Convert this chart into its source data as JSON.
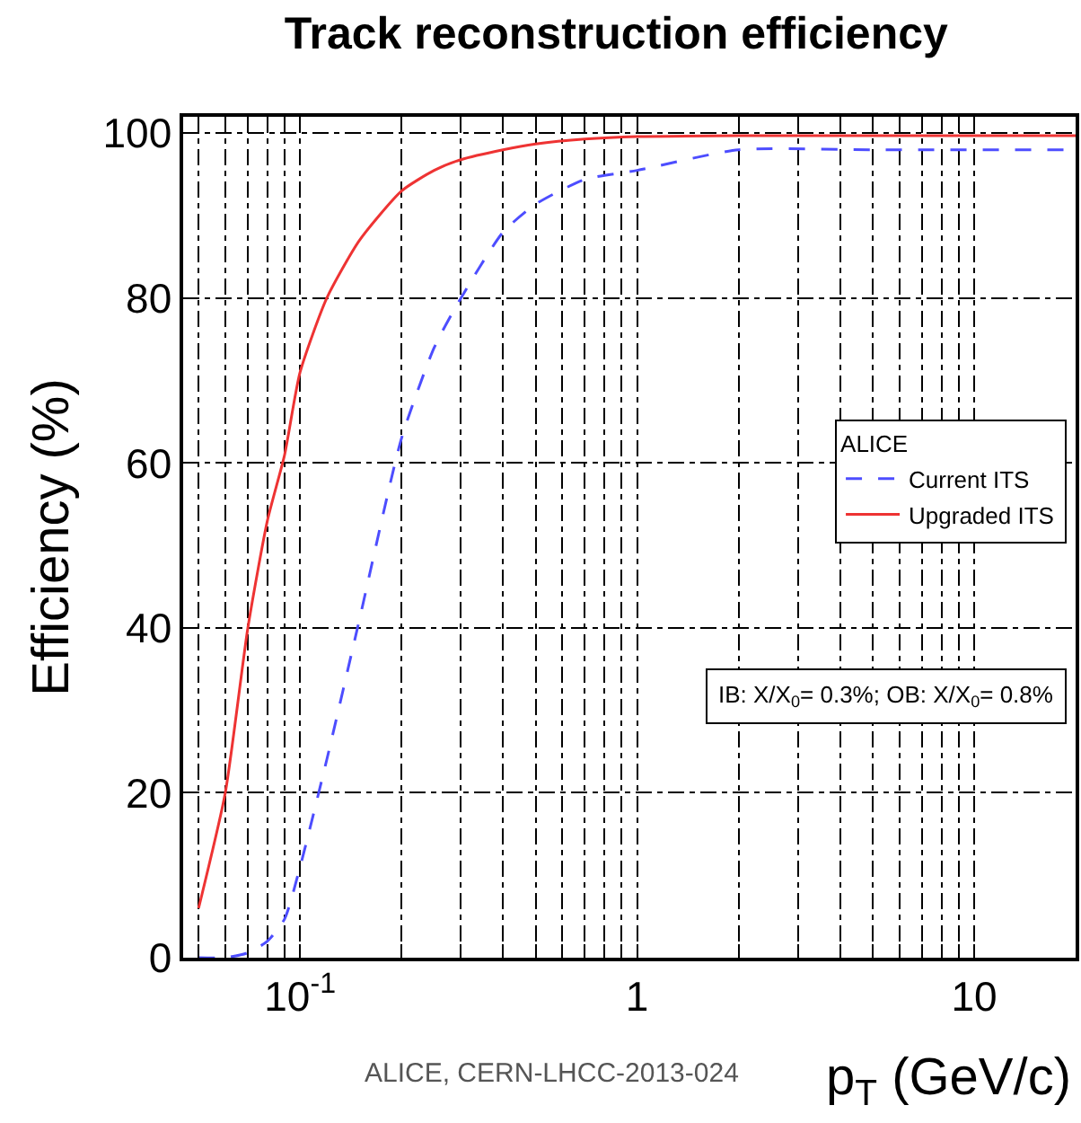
{
  "chart_data": {
    "type": "line",
    "title": "Track reconstruction efficiency",
    "xlabel": "p$_{T}$ (GeV/c)",
    "ylabel": "Efficiency (%)",
    "legend_title": "ALICE",
    "annotations": [
      "IB: X/X$_{0}$= 0.3%; OB: X/X$_{0}$= 0.8%",
      "ALICE, CERN-LHCC-2013-024"
    ],
    "log": "x",
    "grid": true,
    "legend": "right",
    "xlim": [
      0.045,
      20
    ],
    "ylim": [
      0,
      102
    ],
    "xticks": [
      {
        "value": 0.05,
        "label": null
      },
      {
        "value": 0.06,
        "label": null
      },
      {
        "value": 0.07,
        "label": null
      },
      {
        "value": 0.08,
        "label": null
      },
      {
        "value": 0.09,
        "label": null
      },
      {
        "value": 0.1,
        "label": "10$^{-1}$"
      },
      {
        "value": 0.2,
        "label": null
      },
      {
        "value": 0.3,
        "label": null
      },
      {
        "value": 0.4,
        "label": null
      },
      {
        "value": 0.5,
        "label": null
      },
      {
        "value": 0.6,
        "label": null
      },
      {
        "value": 0.7,
        "label": null
      },
      {
        "value": 0.8,
        "label": null
      },
      {
        "value": 0.9,
        "label": null
      },
      {
        "value": 1,
        "label": "1"
      },
      {
        "value": 2,
        "label": null
      },
      {
        "value": 3,
        "label": null
      },
      {
        "value": 4,
        "label": null
      },
      {
        "value": 5,
        "label": null
      },
      {
        "value": 6,
        "label": null
      },
      {
        "value": 7,
        "label": null
      },
      {
        "value": 8,
        "label": null
      },
      {
        "value": 9,
        "label": null
      },
      {
        "value": 10,
        "label": "10"
      }
    ],
    "yticks": [
      0,
      20,
      40,
      60,
      80,
      100
    ],
    "x": [
      0.05,
      0.06,
      0.07,
      0.08,
      0.09,
      0.1,
      0.12,
      0.15,
      0.2,
      0.25,
      0.3,
      0.4,
      0.5,
      0.7,
      1,
      2,
      5,
      20
    ],
    "series": [
      {
        "name": "Current ITS",
        "color": "#4d4dff",
        "line_style": "dashed",
        "values": [
          0,
          0,
          0.6,
          2,
          4.7,
          11,
          24,
          41,
          63,
          74,
          80,
          88,
          91.4,
          94.4,
          95.5,
          98,
          98,
          98
        ]
      },
      {
        "name": "Upgraded ITS",
        "color": "#ee3333",
        "line_style": "solid",
        "values": [
          6,
          20,
          40,
          53,
          61,
          71,
          80,
          87,
          93,
          95.5,
          96.8,
          98,
          98.7,
          99.3,
          99.6,
          99.7,
          99.7,
          99.7
        ]
      }
    ]
  }
}
